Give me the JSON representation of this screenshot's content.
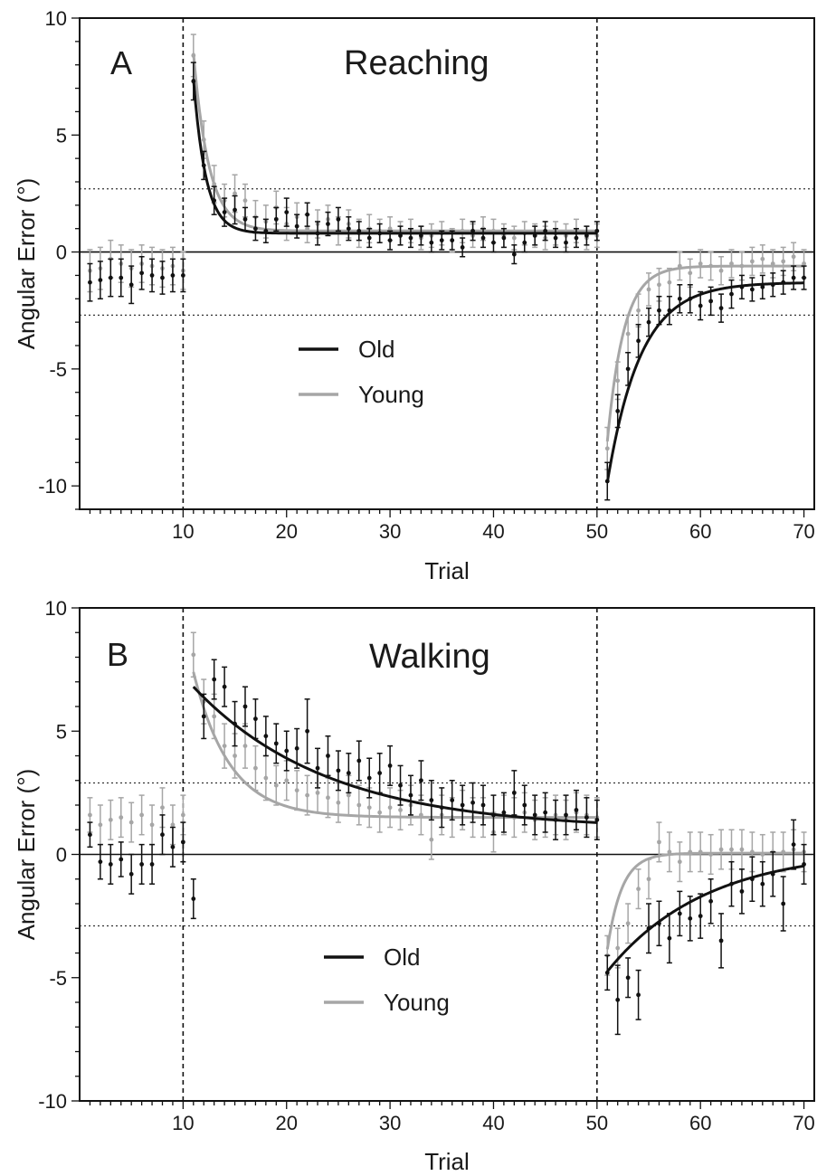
{
  "colors": {
    "old": "#111111",
    "young": "#a6a6a6",
    "axis": "#111111",
    "band": "#333333"
  },
  "chart_data": [
    {
      "type": "scatter",
      "panel": "A",
      "title": "Reaching",
      "xlabel": "Trial",
      "ylabel": "Angular Error (°)",
      "xlim": [
        0,
        71
      ],
      "ylim": [
        -11,
        10
      ],
      "xticks": [
        10,
        20,
        30,
        40,
        50,
        60,
        70
      ],
      "yticks": [
        -10,
        -5,
        0,
        5,
        10
      ],
      "dashed_vlines": [
        10,
        50
      ],
      "dotted_hlines": [
        2.7,
        -2.7
      ],
      "legend": {
        "position": "center-left",
        "entries": [
          "Old",
          "Young"
        ]
      },
      "series": [
        {
          "name": "Old",
          "color": "#111111",
          "x": [
            1,
            2,
            3,
            4,
            5,
            6,
            7,
            8,
            9,
            10,
            11,
            12,
            13,
            14,
            15,
            16,
            17,
            18,
            19,
            20,
            21,
            22,
            23,
            24,
            25,
            26,
            27,
            28,
            29,
            30,
            31,
            32,
            33,
            34,
            35,
            36,
            37,
            38,
            39,
            40,
            41,
            42,
            43,
            44,
            45,
            46,
            47,
            48,
            49,
            50,
            51,
            52,
            53,
            54,
            55,
            56,
            57,
            58,
            59,
            60,
            61,
            62,
            63,
            64,
            65,
            66,
            67,
            68,
            69,
            70
          ],
          "y": [
            -1.3,
            -1.2,
            -1.1,
            -1.1,
            -1.4,
            -0.9,
            -1.0,
            -1.1,
            -1.0,
            -1.0,
            7.3,
            3.7,
            2.2,
            1.7,
            1.8,
            1.4,
            1.0,
            0.9,
            1.4,
            1.7,
            1.1,
            1.6,
            0.8,
            1.2,
            1.4,
            1.0,
            0.9,
            0.6,
            0.8,
            0.5,
            0.7,
            0.6,
            0.7,
            0.4,
            0.5,
            0.5,
            0.2,
            0.9,
            0.6,
            0.4,
            0.6,
            -0.1,
            0.4,
            0.7,
            0.9,
            0.6,
            0.4,
            0.6,
            0.7,
            0.9,
            -9.8,
            -6.8,
            -5.0,
            -3.8,
            -3.0,
            -2.5,
            -2.5,
            -2.0,
            -2.0,
            -2.3,
            -2.1,
            -2.4,
            -1.8,
            -1.5,
            -1.6,
            -1.5,
            -1.4,
            -1.3,
            -1.1,
            -1.1
          ],
          "err": [
            0.8,
            0.8,
            0.8,
            0.8,
            0.8,
            0.7,
            0.7,
            0.7,
            0.7,
            0.7,
            0.8,
            0.6,
            0.6,
            0.6,
            0.6,
            0.5,
            0.5,
            0.5,
            0.5,
            0.6,
            0.5,
            0.5,
            0.5,
            0.5,
            0.5,
            0.5,
            0.4,
            0.4,
            0.4,
            0.4,
            0.4,
            0.4,
            0.4,
            0.4,
            0.4,
            0.4,
            0.4,
            0.4,
            0.4,
            0.4,
            0.4,
            0.4,
            0.4,
            0.4,
            0.4,
            0.4,
            0.4,
            0.4,
            0.4,
            0.4,
            0.8,
            0.7,
            0.7,
            0.7,
            0.6,
            0.6,
            0.6,
            0.6,
            0.6,
            0.6,
            0.6,
            0.6,
            0.6,
            0.5,
            0.5,
            0.5,
            0.5,
            0.5,
            0.5,
            0.5
          ],
          "fit": {
            "blocks": [
              {
                "x": [
                  11,
                  50
                ],
                "a": 6.6,
                "tau": 1.2,
                "c": 0.8
              },
              {
                "x": [
                  51,
                  70
                ],
                "a": -8.55,
                "tau": 3.2,
                "c": -1.3
              }
            ]
          }
        },
        {
          "name": "Young",
          "color": "#a6a6a6",
          "x": [
            1,
            2,
            3,
            4,
            5,
            6,
            7,
            8,
            9,
            10,
            11,
            12,
            13,
            14,
            15,
            16,
            17,
            18,
            19,
            20,
            21,
            22,
            23,
            24,
            25,
            26,
            27,
            28,
            29,
            30,
            31,
            32,
            33,
            34,
            35,
            36,
            37,
            38,
            39,
            40,
            41,
            42,
            43,
            44,
            45,
            46,
            47,
            48,
            49,
            50,
            51,
            52,
            53,
            54,
            55,
            56,
            57,
            58,
            59,
            60,
            61,
            62,
            63,
            64,
            65,
            66,
            67,
            68,
            69,
            70
          ],
          "y": [
            -0.8,
            -0.7,
            -0.3,
            -0.5,
            -0.7,
            -0.5,
            -0.6,
            -0.7,
            -0.6,
            -0.8,
            8.4,
            4.8,
            2.9,
            2.2,
            2.5,
            2.2,
            1.5,
            1.3,
            1.9,
            1.2,
            1.5,
            1.0,
            1.2,
            1.4,
            0.9,
            1.2,
            0.8,
            1.0,
            0.9,
            1.0,
            0.8,
            0.9,
            0.6,
            0.7,
            0.8,
            0.5,
            0.9,
            0.7,
            1.0,
            0.9,
            0.7,
            0.6,
            0.8,
            0.7,
            0.6,
            0.8,
            0.7,
            0.9,
            0.6,
            0.7,
            -8.4,
            -5.5,
            -3.5,
            -2.5,
            -1.6,
            -1.4,
            -1.3,
            -0.6,
            -0.9,
            -0.5,
            -0.6,
            -0.8,
            -0.5,
            -0.6,
            -0.4,
            -0.3,
            -0.5,
            -0.4,
            -0.2,
            -0.5
          ],
          "err": [
            0.9,
            0.9,
            0.8,
            0.8,
            0.8,
            0.8,
            0.8,
            0.8,
            0.8,
            0.8,
            0.9,
            0.8,
            0.8,
            0.7,
            0.8,
            0.7,
            0.7,
            0.7,
            0.7,
            0.7,
            0.6,
            0.6,
            0.6,
            0.6,
            0.6,
            0.6,
            0.6,
            0.6,
            0.5,
            0.5,
            0.5,
            0.5,
            0.5,
            0.5,
            0.5,
            0.5,
            0.5,
            0.5,
            0.5,
            0.5,
            0.5,
            0.5,
            0.5,
            0.5,
            0.5,
            0.5,
            0.5,
            0.5,
            0.5,
            0.5,
            0.9,
            0.8,
            0.8,
            0.7,
            0.7,
            0.7,
            0.6,
            0.6,
            0.6,
            0.6,
            0.6,
            0.6,
            0.6,
            0.6,
            0.6,
            0.6,
            0.6,
            0.6,
            0.6,
            0.6
          ],
          "fit": {
            "blocks": [
              {
                "x": [
                  11,
                  50
                ],
                "a": 7.6,
                "tau": 1.5,
                "c": 0.9
              },
              {
                "x": [
                  51,
                  70
                ],
                "a": -7.5,
                "tau": 1.6,
                "c": -0.6
              }
            ]
          }
        }
      ]
    },
    {
      "type": "scatter",
      "panel": "B",
      "title": "Walking",
      "xlabel": "Trial",
      "ylabel": "Angular Error (°)",
      "xlim": [
        0,
        71
      ],
      "ylim": [
        -10,
        10
      ],
      "xticks": [
        10,
        20,
        30,
        40,
        50,
        60,
        70
      ],
      "yticks": [
        -10,
        -5,
        0,
        5,
        10
      ],
      "dashed_vlines": [
        10,
        50
      ],
      "dotted_hlines": [
        2.9,
        -2.9
      ],
      "legend": {
        "position": "center-left",
        "entries": [
          "Old",
          "Young"
        ]
      },
      "series": [
        {
          "name": "Old",
          "color": "#111111",
          "x": [
            1,
            2,
            3,
            4,
            5,
            6,
            7,
            8,
            9,
            10,
            11,
            12,
            13,
            14,
            15,
            16,
            17,
            18,
            19,
            20,
            21,
            22,
            23,
            24,
            25,
            26,
            27,
            28,
            29,
            30,
            31,
            32,
            33,
            34,
            35,
            36,
            37,
            38,
            39,
            40,
            41,
            42,
            43,
            44,
            45,
            46,
            47,
            48,
            49,
            50,
            51,
            52,
            53,
            54,
            55,
            56,
            57,
            58,
            59,
            60,
            61,
            62,
            63,
            64,
            65,
            66,
            67,
            68,
            69,
            70
          ],
          "y": [
            0.8,
            -0.3,
            -0.4,
            -0.2,
            -0.8,
            -0.4,
            -0.4,
            0.8,
            0.3,
            0.5,
            -1.8,
            5.6,
            7.1,
            6.8,
            5.3,
            6.0,
            5.5,
            4.8,
            4.5,
            4.2,
            4.3,
            5.0,
            3.5,
            4.0,
            3.4,
            3.3,
            3.8,
            3.1,
            3.3,
            3.6,
            2.8,
            2.4,
            3.0,
            2.2,
            1.9,
            2.2,
            2.0,
            2.1,
            2.0,
            1.6,
            1.7,
            2.5,
            2.0,
            1.6,
            1.7,
            1.4,
            1.6,
            1.8,
            1.5,
            1.4,
            -4.8,
            -5.9,
            -5.0,
            -5.7,
            -3.0,
            -2.8,
            -3.4,
            -2.4,
            -2.6,
            -2.5,
            -1.9,
            -3.5,
            -1.2,
            -1.5,
            -1.0,
            -1.2,
            -0.8,
            -2.0,
            0.4,
            -0.4
          ],
          "err": [
            0.5,
            0.7,
            0.8,
            0.7,
            0.8,
            0.8,
            0.8,
            0.8,
            0.8,
            0.8,
            0.8,
            0.9,
            0.8,
            0.8,
            0.9,
            0.8,
            0.8,
            0.8,
            0.8,
            0.8,
            0.8,
            1.3,
            0.8,
            0.8,
            0.8,
            0.8,
            0.8,
            0.8,
            0.8,
            0.8,
            0.8,
            0.8,
            0.8,
            0.8,
            0.8,
            0.8,
            0.8,
            0.8,
            0.8,
            0.8,
            0.8,
            0.9,
            0.8,
            0.8,
            0.8,
            0.8,
            0.8,
            0.8,
            0.8,
            0.8,
            0.7,
            1.4,
            0.8,
            1.0,
            1.0,
            0.9,
            1.0,
            0.9,
            0.9,
            0.9,
            0.9,
            1.1,
            0.9,
            0.9,
            0.9,
            0.9,
            0.9,
            1.1,
            1.0,
            0.8
          ],
          "fit": {
            "blocks": [
              {
                "x": [
                  11,
                  50
                ],
                "a": 5.8,
                "tau": 13.0,
                "c": 1.0
              },
              {
                "x": [
                  51,
                  70
                ],
                "a": -4.95,
                "tau": 9.5,
                "c": 0.2
              }
            ]
          }
        },
        {
          "name": "Young",
          "color": "#a6a6a6",
          "x": [
            1,
            2,
            3,
            4,
            5,
            6,
            7,
            8,
            9,
            10,
            11,
            12,
            13,
            14,
            15,
            16,
            17,
            18,
            19,
            20,
            21,
            22,
            23,
            24,
            25,
            26,
            27,
            28,
            29,
            30,
            31,
            32,
            33,
            34,
            35,
            36,
            37,
            38,
            39,
            40,
            41,
            42,
            43,
            44,
            45,
            46,
            47,
            48,
            49,
            50,
            51,
            52,
            53,
            54,
            55,
            56,
            57,
            58,
            59,
            60,
            61,
            62,
            63,
            64,
            65,
            66,
            67,
            68,
            69,
            70
          ],
          "y": [
            1.6,
            1.2,
            1.4,
            1.5,
            1.3,
            1.6,
            1.2,
            1.9,
            1.2,
            1.6,
            8.1,
            6.2,
            5.6,
            4.4,
            4.0,
            4.4,
            3.5,
            3.1,
            2.8,
            3.0,
            2.6,
            2.4,
            2.5,
            2.3,
            2.1,
            2.4,
            2.0,
            1.9,
            1.7,
            1.9,
            1.8,
            2.0,
            1.6,
            0.6,
            1.6,
            1.5,
            1.8,
            1.5,
            1.5,
            0.9,
            1.6,
            1.5,
            1.7,
            1.4,
            1.5,
            1.6,
            1.4,
            1.7,
            1.6,
            1.5,
            -4.1,
            -3.8,
            -2.8,
            -1.4,
            -1.0,
            0.5,
            0.1,
            -0.3,
            0.1,
            0.1,
            0.0,
            0.2,
            0.2,
            0.2,
            0.1,
            0.0,
            0.1,
            0.1,
            0.2,
            0.1
          ],
          "err": [
            0.7,
            0.8,
            0.8,
            0.8,
            0.8,
            0.8,
            0.8,
            0.8,
            0.8,
            0.8,
            0.9,
            0.9,
            0.9,
            0.9,
            0.9,
            0.9,
            0.9,
            0.9,
            0.8,
            0.8,
            0.8,
            0.8,
            0.8,
            0.8,
            0.8,
            0.8,
            0.8,
            0.8,
            0.8,
            0.8,
            0.8,
            0.8,
            0.8,
            0.8,
            0.8,
            0.8,
            0.8,
            0.8,
            0.8,
            0.8,
            0.8,
            0.8,
            0.8,
            0.8,
            0.8,
            0.8,
            0.8,
            0.8,
            0.8,
            0.8,
            0.8,
            0.8,
            0.8,
            0.8,
            0.8,
            0.8,
            0.8,
            0.8,
            0.8,
            0.8,
            0.8,
            0.8,
            0.8,
            0.8,
            0.8,
            0.8,
            0.8,
            0.8,
            0.8,
            0.8
          ],
          "fit": {
            "blocks": [
              {
                "x": [
                  11,
                  50
                ],
                "a": 5.9,
                "tau": 3.5,
                "c": 1.5
              },
              {
                "x": [
                  51,
                  70
                ],
                "a": -3.9,
                "tau": 1.4,
                "c": 0.05
              }
            ]
          }
        }
      ]
    }
  ]
}
